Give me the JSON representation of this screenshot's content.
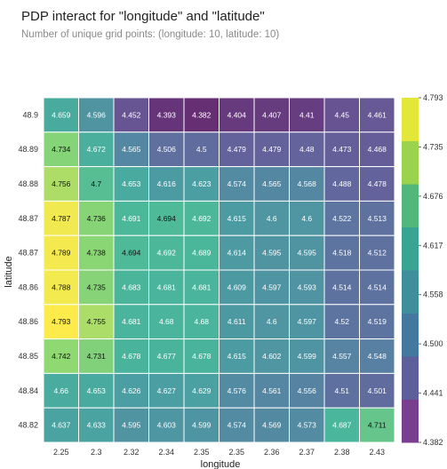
{
  "chart_data": {
    "type": "heatmap",
    "title": "PDP interact for \"longitude\" and \"latitude\"",
    "subtitle": "Number of unique grid points: (longitude: 10, latitude: 10)",
    "xlabel": "longitude",
    "ylabel": "latitude",
    "x_ticks": [
      "2.25",
      "2.3",
      "2.32",
      "2.34",
      "2.35",
      "2.35",
      "2.36",
      "2.37",
      "2.38",
      "2.43"
    ],
    "y_ticks": [
      "48.9",
      "48.89",
      "48.88",
      "48.87",
      "48.87",
      "48.86",
      "48.86",
      "48.85",
      "48.84",
      "48.82"
    ],
    "values": [
      [
        4.659,
        4.596,
        4.452,
        4.393,
        4.382,
        4.404,
        4.407,
        4.41,
        4.45,
        4.461
      ],
      [
        4.734,
        4.672,
        4.565,
        4.506,
        4.5,
        4.479,
        4.479,
        4.48,
        4.473,
        4.468
      ],
      [
        4.756,
        4.7,
        4.653,
        4.616,
        4.623,
        4.574,
        4.565,
        4.568,
        4.488,
        4.478
      ],
      [
        4.787,
        4.736,
        4.691,
        4.694,
        4.692,
        4.615,
        4.6,
        4.6,
        4.522,
        4.513
      ],
      [
        4.789,
        4.738,
        4.694,
        4.692,
        4.689,
        4.614,
        4.595,
        4.595,
        4.518,
        4.512
      ],
      [
        4.788,
        4.735,
        4.683,
        4.681,
        4.681,
        4.609,
        4.597,
        4.593,
        4.514,
        4.514
      ],
      [
        4.793,
        4.755,
        4.681,
        4.68,
        4.68,
        4.611,
        4.6,
        4.597,
        4.52,
        4.519
      ],
      [
        4.742,
        4.731,
        4.678,
        4.677,
        4.678,
        4.615,
        4.602,
        4.599,
        4.557,
        4.548
      ],
      [
        4.66,
        4.653,
        4.626,
        4.627,
        4.629,
        4.576,
        4.561,
        4.556,
        4.51,
        4.501
      ],
      [
        4.637,
        4.633,
        4.595,
        4.603,
        4.599,
        4.574,
        4.569,
        4.573,
        4.687,
        4.711
      ]
    ],
    "colorbar_ticks": [
      "4.793",
      "4.735",
      "4.676",
      "4.617",
      "4.558",
      "4.500",
      "4.441",
      "4.382"
    ],
    "vmin": 4.382,
    "vmax": 4.793,
    "colorbar_colors": [
      "#773f8e",
      "#5d5f9a",
      "#45789e",
      "#3f8e9c",
      "#3aa493",
      "#51b77a",
      "#9bd24e",
      "#e3e73a"
    ],
    "legend_position": "right",
    "grid": false
  }
}
